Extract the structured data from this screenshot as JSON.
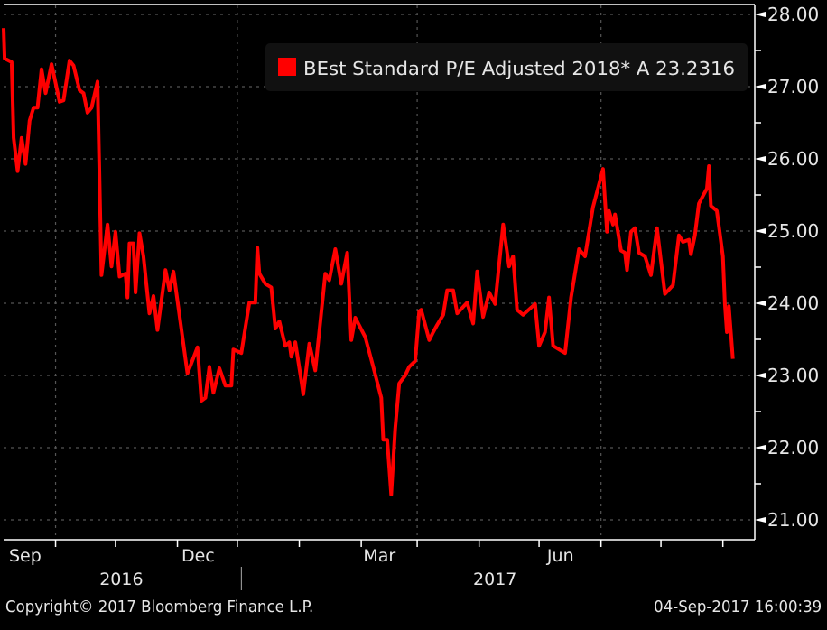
{
  "chart_data": {
    "type": "line",
    "title": "",
    "legend": {
      "label": "BEst Standard P/E Adjusted 2018* A 23.2316",
      "placement": "top-right",
      "color": "#ff0000"
    },
    "x_unit": "days since 2016-09-05",
    "x": [
      0,
      0.5,
      4,
      5,
      7,
      9,
      11,
      13,
      15,
      17,
      19,
      21,
      24,
      28,
      30,
      33,
      35,
      38,
      40,
      42,
      44,
      47,
      49,
      52,
      54,
      56,
      58,
      61,
      62,
      63,
      65,
      66,
      68,
      70,
      73,
      75,
      77,
      81,
      83,
      85,
      92,
      94,
      97,
      99,
      101,
      103,
      105,
      108,
      111,
      114,
      115,
      119,
      123,
      126,
      127,
      128,
      131,
      134,
      136,
      138,
      141,
      143,
      144,
      146,
      149,
      150,
      153,
      156,
      161,
      163,
      166,
      169,
      172,
      174,
      176,
      181,
      185,
      189,
      190,
      192,
      194,
      196,
      198,
      201,
      203,
      206,
      208,
      209,
      213,
      215,
      217,
      220,
      222,
      225,
      227,
      232,
      235,
      237,
      240,
      243,
      246,
      250,
      253,
      255,
      257,
      260,
      266,
      268,
      271,
      273,
      275,
      281,
      284,
      288,
      291,
      295,
      300,
      302,
      303,
      305,
      306,
      309,
      311,
      312,
      314,
      316,
      318,
      321,
      324,
      327,
      331,
      335,
      338,
      340,
      343,
      344,
      346,
      348,
      352,
      353,
      354,
      357,
      360,
      361,
      362,
      363,
      364,
      365
    ],
    "values": [
      27.81,
      27.39,
      27.34,
      26.29,
      25.83,
      26.29,
      25.93,
      26.53,
      26.71,
      26.71,
      27.24,
      26.91,
      27.31,
      26.79,
      26.81,
      27.36,
      27.29,
      26.95,
      26.91,
      26.64,
      26.71,
      27.07,
      24.39,
      25.09,
      24.51,
      24.99,
      24.37,
      24.41,
      24.08,
      24.83,
      24.83,
      24.15,
      24.97,
      24.65,
      23.86,
      24.1,
      23.63,
      24.46,
      24.18,
      24.44,
      23.03,
      23.17,
      23.39,
      22.65,
      22.69,
      23.12,
      22.76,
      23.1,
      22.86,
      22.86,
      23.36,
      23.31,
      24.01,
      24.01,
      24.77,
      24.41,
      24.27,
      24.22,
      23.65,
      23.75,
      23.41,
      23.46,
      23.26,
      23.46,
      22.93,
      22.74,
      23.44,
      23.07,
      24.41,
      24.32,
      24.75,
      24.27,
      24.7,
      23.49,
      23.8,
      23.53,
      23.12,
      22.69,
      22.11,
      22.11,
      21.35,
      22.26,
      22.89,
      23.0,
      23.12,
      23.2,
      23.89,
      23.91,
      23.49,
      23.6,
      23.7,
      23.84,
      24.18,
      24.18,
      23.86,
      24.01,
      23.72,
      24.44,
      23.81,
      24.15,
      23.99,
      25.09,
      24.51,
      24.65,
      23.91,
      23.84,
      23.99,
      23.41,
      23.6,
      24.08,
      23.41,
      23.31,
      24.08,
      24.75,
      24.65,
      25.33,
      25.86,
      24.99,
      25.28,
      25.09,
      25.23,
      24.73,
      24.7,
      24.46,
      24.99,
      25.04,
      24.7,
      24.65,
      24.39,
      25.04,
      24.13,
      24.25,
      24.94,
      24.85,
      24.88,
      24.68,
      24.94,
      25.38,
      25.59,
      25.9,
      25.35,
      25.28,
      24.65,
      23.99,
      23.6,
      23.96,
      23.6,
      23.23
    ],
    "line_color": "#ff0000",
    "ylim": [
      20.7,
      28.2
    ],
    "yticks": [
      28,
      27,
      26,
      25,
      24,
      23,
      22,
      21
    ],
    "ytick_labels": [
      "28.00",
      "27.00",
      "26.00",
      "25.00",
      "24.00",
      "23.00",
      "22.00",
      "21.00"
    ],
    "y_axis_side": "right",
    "grid": true,
    "month_ticks_days": [
      26,
      56,
      87,
      117,
      148,
      179,
      207,
      238,
      268,
      299,
      329,
      360
    ],
    "month_labels": [
      {
        "label": "Sep",
        "day": -2
      },
      {
        "label": "Dec",
        "day": 89
      },
      {
        "label": "Mar",
        "day": 180
      },
      {
        "label": "Jun",
        "day": 272
      }
    ],
    "year_labels": [
      {
        "label": "2016",
        "day": 48
      },
      {
        "label": "2017",
        "day": 235
      }
    ],
    "year_separator_day": 119
  },
  "footer": {
    "copyright": "Copyright© 2017 Bloomberg Finance L.P.",
    "timestamp": "04-Sep-2017 16:00:39"
  }
}
